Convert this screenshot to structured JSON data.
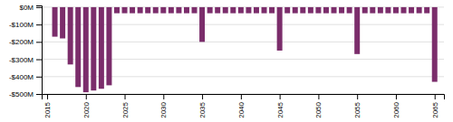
{
  "chart_data": {
    "type": "bar",
    "x": [
      2016,
      2017,
      2018,
      2019,
      2020,
      2021,
      2022,
      2023,
      2024,
      2025,
      2026,
      2027,
      2028,
      2029,
      2030,
      2031,
      2032,
      2033,
      2034,
      2035,
      2036,
      2037,
      2038,
      2039,
      2040,
      2041,
      2042,
      2043,
      2044,
      2045,
      2046,
      2047,
      2048,
      2049,
      2050,
      2051,
      2052,
      2053,
      2054,
      2055,
      2056,
      2057,
      2058,
      2059,
      2060,
      2061,
      2062,
      2063,
      2064,
      2065
    ],
    "values": [
      -170,
      -180,
      -330,
      -460,
      -490,
      -480,
      -470,
      -450,
      -35,
      -35,
      -35,
      -35,
      -35,
      -35,
      -35,
      -35,
      -35,
      -35,
      -35,
      -200,
      -35,
      -35,
      -35,
      -35,
      -35,
      -35,
      -35,
      -35,
      -35,
      -250,
      -35,
      -35,
      -35,
      -35,
      -35,
      -35,
      -35,
      -35,
      -35,
      -270,
      -35,
      -35,
      -35,
      -35,
      -35,
      -35,
      -35,
      -35,
      -35,
      -430
    ],
    "color": "#7B2D6B",
    "xlim": [
      2014.3,
      2066.2
    ],
    "xticks": [
      2015,
      2020,
      2025,
      2030,
      2035,
      2040,
      2045,
      2050,
      2055,
      2060,
      2065
    ],
    "ylim": [
      -500,
      10
    ],
    "yticks": [
      {
        "value": 0,
        "label": "$0M"
      },
      {
        "value": -100,
        "label": "-$100M"
      },
      {
        "value": -200,
        "label": "-$200M"
      },
      {
        "value": -300,
        "label": "-$300M"
      },
      {
        "value": -400,
        "label": "-$400M"
      },
      {
        "value": -500,
        "label": "-$500M"
      }
    ],
    "grid": true
  }
}
